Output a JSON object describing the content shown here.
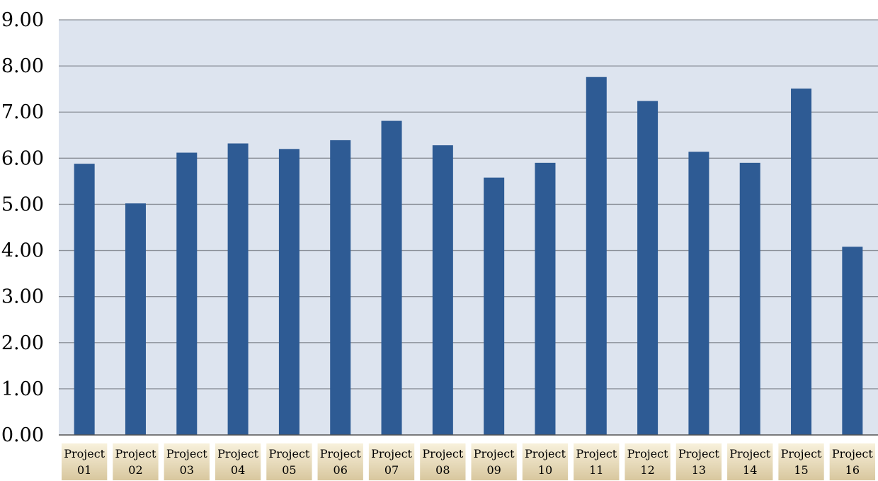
{
  "chart_data": {
    "type": "bar",
    "categories": [
      [
        "Project",
        "01"
      ],
      [
        "Project",
        "02"
      ],
      [
        "Project",
        "03"
      ],
      [
        "Project",
        "04"
      ],
      [
        "Project",
        "05"
      ],
      [
        "Project",
        "06"
      ],
      [
        "Project",
        "07"
      ],
      [
        "Project",
        "08"
      ],
      [
        "Project",
        "09"
      ],
      [
        "Project",
        "10"
      ],
      [
        "Project",
        "11"
      ],
      [
        "Project",
        "12"
      ],
      [
        "Project",
        "13"
      ],
      [
        "Project",
        "14"
      ],
      [
        "Project",
        "15"
      ],
      [
        "Project",
        "16"
      ]
    ],
    "values": [
      5.88,
      5.02,
      6.12,
      6.32,
      6.2,
      6.39,
      6.81,
      6.28,
      5.58,
      5.9,
      7.76,
      7.24,
      6.14,
      5.9,
      7.51,
      4.08
    ],
    "ylim": [
      0,
      9
    ],
    "yticks": [
      "0.00",
      "1.00",
      "2.00",
      "3.00",
      "4.00",
      "5.00",
      "6.00",
      "7.00",
      "8.00",
      "9.00"
    ],
    "grid": true,
    "colors": {
      "bar": "#2e5b94",
      "plot_bg": "#dde4ef",
      "grid": "#8a8f98",
      "label_bg_top": "#f8f1dc",
      "label_bg_bottom": "#d8c79e"
    }
  }
}
